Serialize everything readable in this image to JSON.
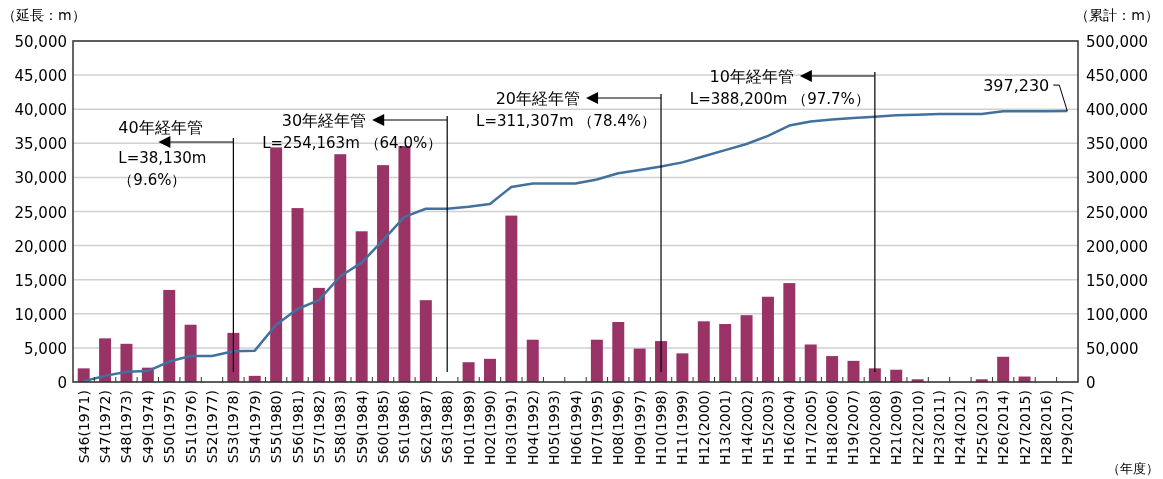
{
  "chart_data": {
    "type": "bar",
    "ylabel": "（延長：m）",
    "y2label": "（累計：m）",
    "xlabel": "（年度）",
    "categories": [
      "S46(1971)",
      "S47(1972)",
      "S48(1973)",
      "S49(1974)",
      "S50(1975)",
      "S51(1976)",
      "S52(1977)",
      "S53(1978)",
      "S54(1979)",
      "S55(1980)",
      "S56(1981)",
      "S57(1982)",
      "S58(1983)",
      "S59(1984)",
      "S60(1985)",
      "S61(1986)",
      "S62(1987)",
      "S63(1988)",
      "H01(1989)",
      "H02(1990)",
      "H03(1991)",
      "H04(1992)",
      "H05(1993)",
      "H06(1994)",
      "H07(1995)",
      "H08(1996)",
      "H09(1997)",
      "H10(1998)",
      "H11(1999)",
      "H12(2000)",
      "H13(2001)",
      "H14(2002)",
      "H15(2003)",
      "H16(2004)",
      "H17(2005)",
      "H18(2006)",
      "H19(2007)",
      "H20(2008)",
      "H21(2009)",
      "H22(2010)",
      "H23(2011)",
      "H24(2012)",
      "H25(2013)",
      "H26(2014)",
      "H27(2015)",
      "H28(2016)",
      "H29(2017)"
    ],
    "series": [
      {
        "color": "#993366",
        "values": [
          2000,
          6400,
          5600,
          2100,
          13500,
          8400,
          0,
          7200,
          900,
          34400,
          25500,
          13800,
          33400,
          22100,
          31800,
          34600,
          12000,
          0,
          2900,
          3400,
          24400,
          6200,
          0,
          null,
          6200,
          8800,
          4900,
          6000,
          4200,
          8900,
          8500,
          9800,
          12500,
          14500,
          5500,
          3800,
          3100,
          2000,
          1800,
          400,
          0,
          0,
          400,
          3700,
          800,
          0,
          0
        ]
      },
      {
        "type": "line",
        "axis": "y2",
        "color": "#41719c",
        "values": [
          1000,
          9000,
          15000,
          16000,
          30000,
          38000,
          38000,
          45000,
          46000,
          84000,
          107000,
          120000,
          155000,
          175000,
          208000,
          242000,
          254000,
          254000,
          257000,
          261000,
          286000,
          291000,
          291000,
          291000,
          297000,
          306000,
          311000,
          316000,
          322000,
          331000,
          340000,
          349000,
          361000,
          376000,
          382000,
          385000,
          387000,
          389000,
          391000,
          392000,
          393000,
          393000,
          393000,
          397000,
          397000,
          397000,
          397230
        ],
        "value_labels": [
          null,
          null,
          null,
          null,
          null,
          null,
          null,
          null,
          null,
          null,
          null,
          null,
          null,
          null,
          null,
          null,
          null,
          null,
          null,
          null,
          null,
          null,
          null,
          null,
          null,
          null,
          null,
          null,
          null,
          null,
          null,
          null,
          null,
          null,
          null,
          null,
          null,
          null,
          null,
          null,
          null,
          null,
          null,
          null,
          null,
          null,
          "397,230"
        ]
      }
    ],
    "ylim": [
      0,
      50000
    ],
    "yticks": [
      {
        "value": 0,
        "label": "0"
      },
      {
        "value": 5000,
        "label": "5,000"
      },
      {
        "value": 10000,
        "label": "10,000"
      },
      {
        "value": 15000,
        "label": "15,000"
      },
      {
        "value": 20000,
        "label": "20,000"
      },
      {
        "value": 25000,
        "label": "25,000"
      },
      {
        "value": 30000,
        "label": "30,000"
      },
      {
        "value": 35000,
        "label": "35,000"
      },
      {
        "value": 40000,
        "label": "40,000"
      },
      {
        "value": 45000,
        "label": "45,000"
      },
      {
        "value": 50000,
        "label": "50,000"
      }
    ],
    "y2lim": [
      0,
      500000
    ],
    "y2ticks": [
      {
        "value": 0,
        "label": "0"
      },
      {
        "value": 50000,
        "label": "50,000"
      },
      {
        "value": 100000,
        "label": "100,000"
      },
      {
        "value": 150000,
        "label": "150,000"
      },
      {
        "value": 200000,
        "label": "200,000"
      },
      {
        "value": 250000,
        "label": "250,000"
      },
      {
        "value": 300000,
        "label": "300,000"
      },
      {
        "value": 350000,
        "label": "350,000"
      },
      {
        "value": 400000,
        "label": "400,000"
      },
      {
        "value": 450000,
        "label": "450,000"
      },
      {
        "value": 500000,
        "label": "500,000"
      }
    ],
    "ref_lines": [
      {
        "axis": "x",
        "value": "S53(1978)",
        "label": "40年経年管\nL=38,130m\n（9.6%）"
      },
      {
        "axis": "x",
        "value": "S63(1988)",
        "label": "30年経年管\nL=254,163m （64.0%）"
      },
      {
        "axis": "x",
        "value": "H10(1998)",
        "label": "20年経年管\nL=311,307m （78.4%）"
      },
      {
        "axis": "x",
        "value": "H20(2008)",
        "label": "10年経年管\nL=388,200m （97.7%）"
      }
    ],
    "grid": "y"
  }
}
